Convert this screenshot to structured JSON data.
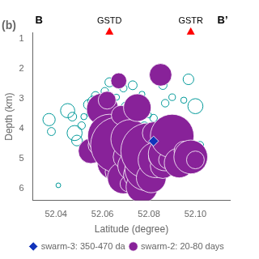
{
  "chart_data": {
    "type": "bubble",
    "title": "(b)",
    "xlabel": "Latitude (degree)",
    "ylabel": "Depth (km)",
    "xlim": [
      52.03,
      52.115
    ],
    "ylim": [
      6.4,
      0.8
    ],
    "xticks": [
      52.04,
      52.06,
      52.08,
      {
        "value": 52.1,
        "label": "52.10"
      }
    ],
    "yticks": [
      1,
      2,
      3,
      4,
      5,
      6
    ],
    "grid": false,
    "legend": "bottom",
    "series": [
      {
        "color": "#009999",
        "marker": "open_circle",
        "x": [
          52.037,
          52.038,
          52.045,
          52.047,
          52.048,
          52.049,
          52.051,
          52.052,
          52.054,
          52.055,
          52.056,
          52.057,
          52.058,
          52.059,
          52.06,
          52.061,
          52.062,
          52.063,
          52.064,
          52.065,
          52.066,
          52.067,
          52.068,
          52.069,
          52.07,
          52.071,
          52.072,
          52.073,
          52.074,
          52.075,
          52.076,
          52.077,
          52.078,
          52.079,
          52.08,
          52.081,
          52.082,
          52.083,
          52.085,
          52.086,
          52.087,
          52.088,
          52.089,
          52.09,
          52.092,
          52.095,
          52.097,
          52.1,
          52.102,
          52.041
        ],
        "values": [
          3.7,
          4.1,
          3.4,
          3.6,
          4.15,
          4.4,
          3.9,
          3.6,
          3.2,
          3.5,
          3.1,
          2.9,
          3.85,
          4.05,
          3.05,
          2.75,
          3.4,
          2.45,
          3.15,
          3.65,
          2.95,
          3.75,
          4.25,
          2.65,
          3.25,
          4.35,
          3.85,
          2.55,
          3.05,
          4.55,
          3.35,
          2.85,
          3.95,
          4.15,
          3.55,
          4.45,
          3.65,
          4.75,
          2.25,
          2.55,
          3.15,
          4.4,
          3.85,
          2.95,
          5.05,
          3.05,
          2.35,
          3.25,
          4.55,
          5.9
        ],
        "sizes": [
          120,
          50,
          160,
          60,
          180,
          90,
          45,
          30,
          80,
          50,
          100,
          55,
          55,
          40,
          85,
          45,
          35,
          65,
          50,
          70,
          30,
          110,
          38,
          42,
          55,
          28,
          45,
          62,
          22,
          40,
          35,
          28,
          85,
          40,
          22,
          28,
          45,
          32,
          110,
          55,
          45,
          160,
          40,
          35,
          55,
          30,
          90,
          180,
          40,
          18
        ]
      },
      {
        "name": "swarm-2: 20-80 days",
        "color": "#882299",
        "marker": "circle",
        "x": [
          52.055,
          52.058,
          52.06,
          52.062,
          52.063,
          52.064,
          52.065,
          52.066,
          52.067,
          52.068,
          52.069,
          52.07,
          52.071,
          52.072,
          52.073,
          52.074,
          52.075,
          52.076,
          52.077,
          52.078,
          52.079,
          52.08,
          52.081,
          52.082,
          52.083,
          52.084,
          52.085,
          52.086,
          52.087,
          52.088,
          52.09,
          52.093,
          52.095,
          52.098,
          52.1,
          52.067,
          52.085,
          52.075
        ],
        "values": [
          4.75,
          4.55,
          3.35,
          3.05,
          4.25,
          4.85,
          5.15,
          5.45,
          4.55,
          3.55,
          5.65,
          4.95,
          5.85,
          4.35,
          5.25,
          4.65,
          5.55,
          4.85,
          5.95,
          4.45,
          5.35,
          4.75,
          5.65,
          4.15,
          5.05,
          4.95,
          4.55,
          5.25,
          4.85,
          5.05,
          4.25,
          5.15,
          4.75,
          4.95,
          5.05,
          2.4,
          2.2,
          3.3
        ],
        "sizes": [
          500,
          300,
          800,
          250,
          1500,
          600,
          900,
          400,
          2500,
          300,
          800,
          500,
          200,
          1200,
          700,
          400,
          600,
          250,
          800,
          300,
          1500,
          2500,
          700,
          400,
          1000,
          300,
          200,
          500,
          900,
          250,
          1500,
          700,
          300,
          900,
          250,
          200,
          400,
          600
        ]
      },
      {
        "name": "swarm-3: 350-470 da",
        "color": "#1133bb",
        "marker": "diamond",
        "x": [
          52.082
        ],
        "values": [
          4.42
        ],
        "sizes": [
          80
        ]
      }
    ],
    "annotations": [
      {
        "text": "GSTD",
        "x": 52.063,
        "y": 0.8,
        "marker": "triangle",
        "color": "red"
      },
      {
        "text": "GSTR",
        "x": 52.098,
        "y": 0.8,
        "marker": "triangle",
        "color": "red"
      },
      {
        "text": "B",
        "x": 52.031
      },
      {
        "text": "B’",
        "x": 52.114
      }
    ]
  }
}
